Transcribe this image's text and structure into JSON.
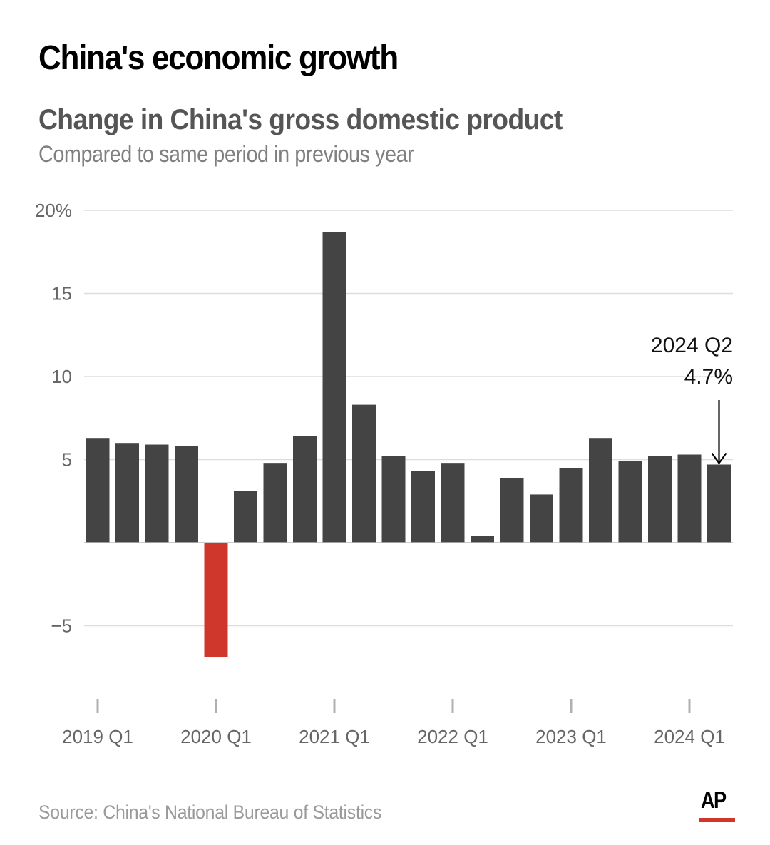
{
  "header": {
    "title": "China's economic growth",
    "subtitle": "Change in China's gross domestic product",
    "description": "Compared to same period in previous year"
  },
  "footer": {
    "source": "Source: China's National Bureau of Statistics",
    "logo_text": "AP",
    "logo_accent": "#d0372c"
  },
  "colors": {
    "positive_bar": "#444444",
    "negative_bar": "#d0372c",
    "gridline": "#dddddd",
    "baseline": "#bbbbbb",
    "tick": "#b0b0b0"
  },
  "chart_data": {
    "type": "bar",
    "title": "Change in China's gross domestic product",
    "subtitle": "Compared to same period in previous year",
    "xlabel": "",
    "ylabel": "",
    "unit": "%",
    "ylim": [
      -8,
      20
    ],
    "yticks": [
      -5,
      5,
      10,
      15,
      20
    ],
    "ytick_labels": [
      "−5",
      "5",
      "10",
      "15",
      "20%"
    ],
    "grid": true,
    "categories": [
      "2019 Q1",
      "2019 Q2",
      "2019 Q3",
      "2019 Q4",
      "2020 Q1",
      "2020 Q2",
      "2020 Q3",
      "2020 Q4",
      "2021 Q1",
      "2021 Q2",
      "2021 Q3",
      "2021 Q4",
      "2022 Q1",
      "2022 Q2",
      "2022 Q3",
      "2022 Q4",
      "2023 Q1",
      "2023 Q2",
      "2023 Q3",
      "2023 Q4",
      "2024 Q1",
      "2024 Q2"
    ],
    "values": [
      6.3,
      6.0,
      5.9,
      5.8,
      -6.9,
      3.1,
      4.8,
      6.4,
      18.7,
      8.3,
      5.2,
      4.3,
      4.8,
      0.4,
      3.9,
      2.9,
      4.5,
      6.3,
      4.9,
      5.2,
      5.3,
      4.7
    ],
    "xtick_labels": [
      "2019 Q1",
      "2020 Q1",
      "2021 Q1",
      "2022 Q1",
      "2023 Q1",
      "2024 Q1"
    ],
    "xtick_indices": [
      0,
      4,
      8,
      12,
      16,
      20
    ],
    "annotation": {
      "target_index": 21,
      "line1": "2024 Q2",
      "line2": "4.7%"
    }
  }
}
